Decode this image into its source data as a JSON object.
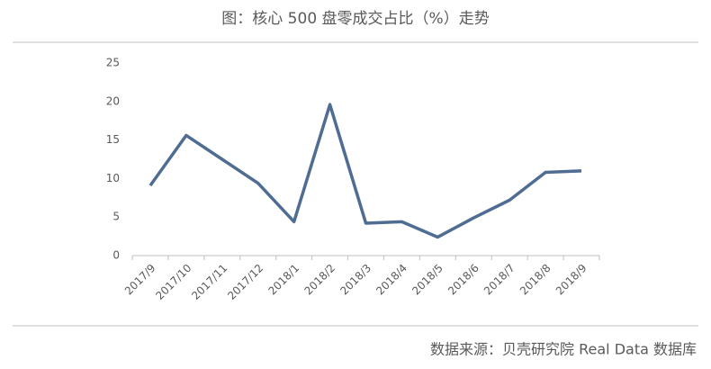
{
  "chart_data": {
    "type": "line",
    "title": "图：核心 500 盘零成交占比（%）走势",
    "source": "数据来源：贝壳研究院 Real Data 数据库",
    "categories": [
      "2017/9",
      "2017/10",
      "2017/11",
      "2017/12",
      "2018/1",
      "2018/2",
      "2018/3",
      "2018/4",
      "2018/5",
      "2018/6",
      "2018/7",
      "2018/8",
      "2018/9"
    ],
    "series": [
      {
        "name": "核心 500 盘零成交占比",
        "color": "#4f6d93",
        "values": [
          9.1,
          15.6,
          12.5,
          9.4,
          4.4,
          19.6,
          4.2,
          4.4,
          2.4,
          4.9,
          7.2,
          10.8,
          11.0
        ]
      }
    ],
    "ylim": [
      0,
      25
    ],
    "yticks": [
      0,
      5,
      10,
      15,
      20,
      25
    ],
    "grid": false
  }
}
